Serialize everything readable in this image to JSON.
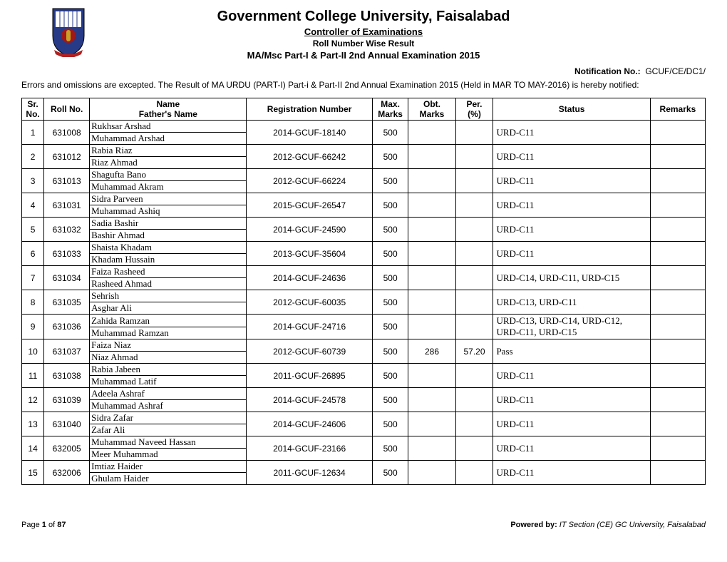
{
  "header": {
    "university": "Government College University, Faisalabad",
    "controller": "Controller of Examinations",
    "line3": "Roll Number Wise Result",
    "line4": "MA/Msc Part-I & Part-II 2nd Annual Examination 2015",
    "notification_label": "Notification No.:",
    "notification_value": "GCUF/CE/DC1/",
    "preamble": "Errors and omissions are excepted. The Result of MA URDU (PART-I) Part-i & Part-II 2nd Annual Examination  2015 (Held in  MAR TO MAY-2016) is hereby notified:"
  },
  "columns": {
    "sr": "Sr. No.",
    "roll": "Roll No.",
    "name": "Name",
    "father": "Father's Name",
    "reg": "Registration Number",
    "max": "Max. Marks",
    "obt": "Obt. Marks",
    "per": "Per. (%)",
    "status": "Status",
    "remarks": "Remarks"
  },
  "rows": [
    {
      "sr": "1",
      "roll": "631008",
      "name": "Rukhsar Arshad",
      "father": "Muhammad Arshad",
      "reg": "2014-GCUF-18140",
      "max": "500",
      "obt": "",
      "per": "",
      "status": "URD-C11",
      "remarks": ""
    },
    {
      "sr": "2",
      "roll": "631012",
      "name": "Rabia Riaz",
      "father": "Riaz Ahmad",
      "reg": "2012-GCUF-66242",
      "max": "500",
      "obt": "",
      "per": "",
      "status": "URD-C11",
      "remarks": ""
    },
    {
      "sr": "3",
      "roll": "631013",
      "name": "Shagufta Bano",
      "father": "Muhammad Akram",
      "reg": "2012-GCUF-66224",
      "max": "500",
      "obt": "",
      "per": "",
      "status": "URD-C11",
      "remarks": ""
    },
    {
      "sr": "4",
      "roll": "631031",
      "name": "Sidra Parveen",
      "father": "Muhammad Ashiq",
      "reg": "2015-GCUF-26547",
      "max": "500",
      "obt": "",
      "per": "",
      "status": "URD-C11",
      "remarks": ""
    },
    {
      "sr": "5",
      "roll": "631032",
      "name": "Sadia Bashir",
      "father": "Bashir Ahmad",
      "reg": "2014-GCUF-24590",
      "max": "500",
      "obt": "",
      "per": "",
      "status": "URD-C11",
      "remarks": ""
    },
    {
      "sr": "6",
      "roll": "631033",
      "name": "Shaista Khadam",
      "father": "Khadam Hussain",
      "reg": "2013-GCUF-35604",
      "max": "500",
      "obt": "",
      "per": "",
      "status": "URD-C11",
      "remarks": ""
    },
    {
      "sr": "7",
      "roll": "631034",
      "name": "Faiza Rasheed",
      "father": "Rasheed Ahmad",
      "reg": "2014-GCUF-24636",
      "max": "500",
      "obt": "",
      "per": "",
      "status": "URD-C14, URD-C11, URD-C15",
      "remarks": ""
    },
    {
      "sr": "8",
      "roll": "631035",
      "name": "Sehrish",
      "father": "Asghar Ali",
      "reg": "2012-GCUF-60035",
      "max": "500",
      "obt": "",
      "per": "",
      "status": "URD-C13, URD-C11",
      "remarks": ""
    },
    {
      "sr": "9",
      "roll": "631036",
      "name": "Zahida Ramzan",
      "father": "Muhammad Ramzan",
      "reg": "2014-GCUF-24716",
      "max": "500",
      "obt": "",
      "per": "",
      "status": "URD-C13, URD-C14, URD-C12, URD-C11, URD-C15",
      "remarks": ""
    },
    {
      "sr": "10",
      "roll": "631037",
      "name": "Faiza Niaz",
      "father": "Niaz Ahmad",
      "reg": "2012-GCUF-60739",
      "max": "500",
      "obt": "286",
      "per": "57.20",
      "status": "Pass",
      "remarks": ""
    },
    {
      "sr": "11",
      "roll": "631038",
      "name": "Rabia Jabeen",
      "father": "Muhammad Latif",
      "reg": "2011-GCUF-26895",
      "max": "500",
      "obt": "",
      "per": "",
      "status": "URD-C11",
      "remarks": ""
    },
    {
      "sr": "12",
      "roll": "631039",
      "name": "Adeela Ashraf",
      "father": "Muhammad Ashraf",
      "reg": "2014-GCUF-24578",
      "max": "500",
      "obt": "",
      "per": "",
      "status": "URD-C11",
      "remarks": ""
    },
    {
      "sr": "13",
      "roll": "631040",
      "name": "Sidra Zafar",
      "father": "Zafar Ali",
      "reg": "2014-GCUF-24606",
      "max": "500",
      "obt": "",
      "per": "",
      "status": "URD-C11",
      "remarks": ""
    },
    {
      "sr": "14",
      "roll": "632005",
      "name": "Muhammad Naveed Hassan",
      "father": "Meer Muhammad",
      "reg": "2014-GCUF-23166",
      "max": "500",
      "obt": "",
      "per": "",
      "status": "URD-C11",
      "remarks": ""
    },
    {
      "sr": "15",
      "roll": "632006",
      "name": "Imtiaz Haider",
      "father": "Ghulam Haider",
      "reg": "2011-GCUF-12634",
      "max": "500",
      "obt": "",
      "per": "",
      "status": "URD-C11",
      "remarks": ""
    }
  ],
  "footer": {
    "page_label": "Page",
    "page_of": "of",
    "page_no": "1",
    "page_total": "87",
    "powered_label": "Powered by:",
    "powered_value": "IT Section (CE) GC University, Faisalabad"
  },
  "colors": {
    "text": "#000000",
    "background": "#ffffff",
    "shield_blue": "#263a88",
    "shield_red": "#a01818",
    "ribbon_red": "#b22020",
    "gold": "#c9a227"
  }
}
